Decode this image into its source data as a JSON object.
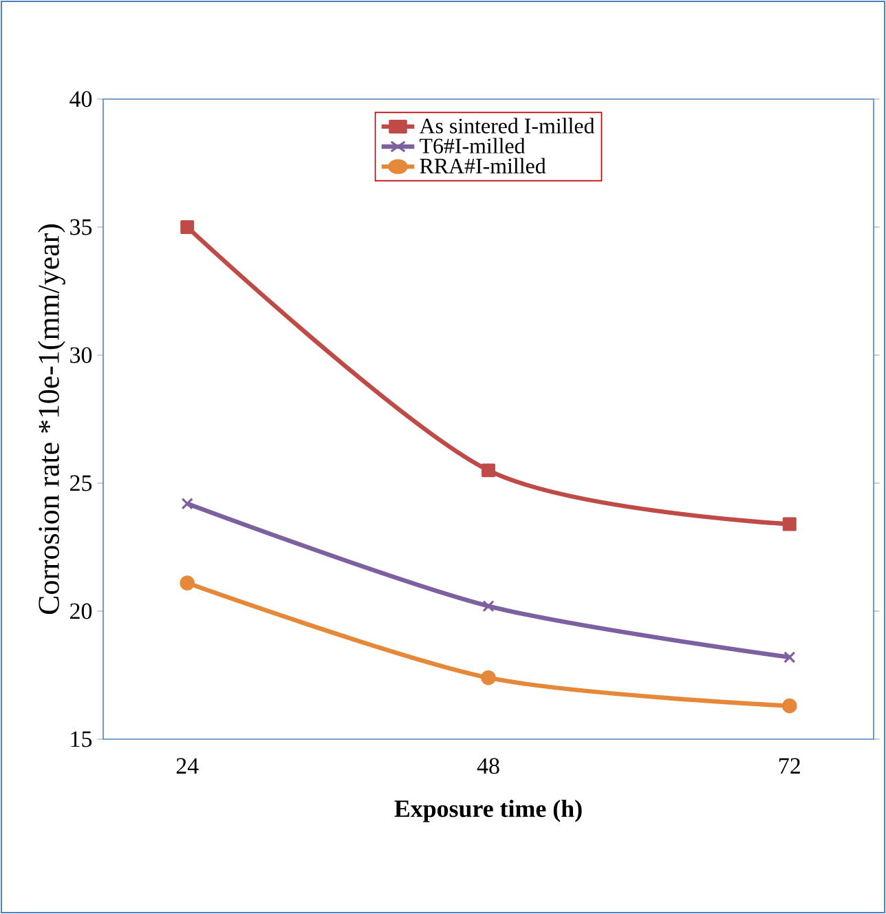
{
  "chart_data": {
    "type": "line",
    "xlabel": "Exposure time (h)",
    "ylabel": "Corrosion  rate *10e-1(mm/year)",
    "x": [
      24,
      48,
      72
    ],
    "series": [
      {
        "name": "As sintered I-milled",
        "color": "#be4b48",
        "marker": "square",
        "values": [
          35.0,
          25.5,
          23.4
        ]
      },
      {
        "name": "T6#I-milled",
        "color": "#7d60a0",
        "marker": "cross",
        "values": [
          24.2,
          20.2,
          18.2
        ]
      },
      {
        "name": "RRA#I-milled",
        "color": "#e5883a",
        "marker": "circle",
        "values": [
          21.1,
          17.4,
          16.3
        ]
      }
    ],
    "xlim": [
      17.3,
      78.7
    ],
    "xticks": [
      24,
      48,
      72
    ],
    "ylim": [
      15,
      40
    ],
    "yticks": [
      15,
      20,
      25,
      30,
      35,
      40
    ],
    "legend": "top",
    "grid": false
  }
}
